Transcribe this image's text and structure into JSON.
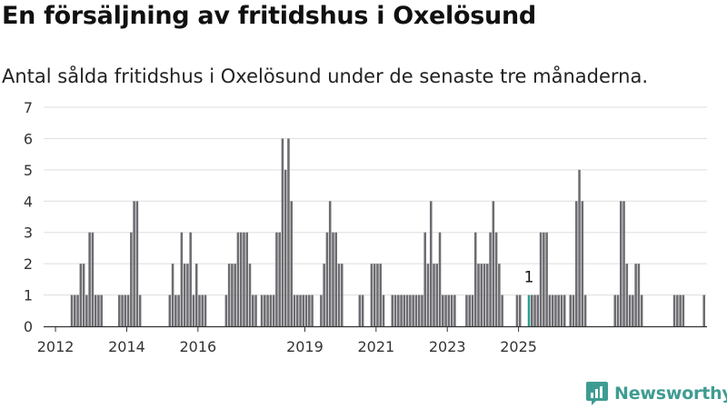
{
  "title": "En försäljning av fritidshus i Oxelösund",
  "subtitle": "Antal sålda fritidshus i Oxelösund under de senaste tre månaderna.",
  "logo": {
    "text": "Newsworthy",
    "icon": "newsworthy-logo-icon"
  },
  "colors": {
    "bar": "#6d6c71",
    "highlight": "#2a9d8f",
    "grid": "#dddddd",
    "axis": "#333333",
    "text": "#333333",
    "logo": "#3f9c92"
  },
  "chart_data": {
    "type": "bar",
    "title": "En försäljning av fritidshus i Oxelösund",
    "subtitle": "Antal sålda fritidshus i Oxelösund under de senaste tre månaderna.",
    "xlabel": "",
    "ylabel": "",
    "ylim": [
      0,
      7
    ],
    "yticks": [
      0,
      1,
      2,
      3,
      4,
      5,
      6,
      7
    ],
    "grid": true,
    "x_unit": "month",
    "x_start": "2011-09",
    "xticks": [
      {
        "label": "2012",
        "date": "2012-01"
      },
      {
        "label": "2014",
        "date": "2014-01"
      },
      {
        "label": "2016",
        "date": "2016-01"
      },
      {
        "label": "2019",
        "date": "2019-01"
      },
      {
        "label": "2021",
        "date": "2021-01"
      },
      {
        "label": "2023",
        "date": "2023-01"
      },
      {
        "label": "2025",
        "date": "2025-01"
      }
    ],
    "values": [
      0,
      0,
      0,
      0,
      0,
      0,
      0,
      0,
      0,
      1,
      1,
      1,
      2,
      2,
      1,
      3,
      3,
      1,
      1,
      1,
      0,
      0,
      0,
      0,
      0,
      1,
      1,
      1,
      1,
      3,
      4,
      4,
      1,
      0,
      0,
      0,
      0,
      0,
      0,
      0,
      0,
      0,
      1,
      2,
      1,
      1,
      3,
      2,
      2,
      3,
      1,
      2,
      1,
      1,
      1,
      0,
      0,
      0,
      0,
      0,
      0,
      1,
      2,
      2,
      2,
      3,
      3,
      3,
      3,
      2,
      1,
      1,
      0,
      1,
      1,
      1,
      1,
      1,
      3,
      3,
      6,
      5,
      6,
      4,
      1,
      1,
      1,
      1,
      1,
      1,
      1,
      0,
      0,
      1,
      2,
      3,
      4,
      3,
      3,
      2,
      2,
      0,
      0,
      0,
      0,
      0,
      1,
      1,
      0,
      0,
      2,
      2,
      2,
      2,
      1,
      0,
      0,
      1,
      1,
      1,
      1,
      1,
      1,
      1,
      1,
      1,
      1,
      1,
      3,
      2,
      4,
      2,
      2,
      3,
      1,
      1,
      1,
      1,
      1,
      0,
      0,
      0,
      1,
      1,
      1,
      3,
      2,
      2,
      2,
      2,
      3,
      4,
      3,
      2,
      1,
      0,
      0,
      0,
      0,
      1,
      1,
      0,
      0,
      1,
      1,
      1,
      1,
      3,
      3,
      3,
      1,
      1,
      1,
      1,
      1,
      1,
      0,
      1,
      1,
      4,
      5,
      4,
      1,
      0,
      0,
      0,
      0,
      0,
      0,
      0,
      0,
      0,
      1,
      1,
      4,
      4,
      2,
      1,
      1,
      2,
      2,
      1,
      0,
      0,
      0,
      0,
      0,
      0,
      0,
      0,
      0,
      0,
      1,
      1,
      1,
      1,
      0,
      0,
      0,
      0,
      0,
      0,
      1
    ],
    "highlight": {
      "date": "2025-04",
      "value": 1,
      "label": "1"
    }
  }
}
